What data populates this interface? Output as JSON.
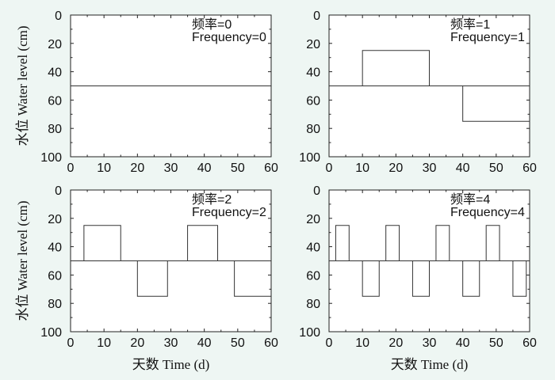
{
  "chart_data": [
    {
      "type": "line",
      "annotation_cn": "频率=0",
      "annotation_en": "Frequency=0",
      "ylabel": "水位  Water level (cm)",
      "xlabel": "",
      "xlim": [
        0,
        60
      ],
      "ylim": [
        0,
        100
      ],
      "y_inverted": true,
      "xticks": [
        "0",
        "10",
        "20",
        "30",
        "40",
        "50",
        "60"
      ],
      "yticks": [
        "0",
        "20",
        "40",
        "60",
        "80",
        "100"
      ],
      "baseline": 50,
      "series": [
        {
          "x": [
            0,
            60
          ],
          "y": [
            50,
            50
          ]
        }
      ]
    },
    {
      "type": "line",
      "annotation_cn": "频率=1",
      "annotation_en": "Frequency=1",
      "ylabel": "",
      "xlabel": "",
      "xlim": [
        0,
        60
      ],
      "ylim": [
        0,
        100
      ],
      "y_inverted": true,
      "xticks": [
        "0",
        "10",
        "20",
        "30",
        "40",
        "50",
        "60"
      ],
      "yticks": [
        "0",
        "20",
        "40",
        "60",
        "80",
        "100"
      ],
      "baseline": 50,
      "series": [
        {
          "x": [
            10,
            10,
            30,
            30
          ],
          "y": [
            50,
            25,
            25,
            50
          ]
        },
        {
          "x": [
            40,
            40,
            60
          ],
          "y": [
            50,
            75,
            75
          ]
        }
      ]
    },
    {
      "type": "line",
      "annotation_cn": "频率=2",
      "annotation_en": "Frequency=2",
      "ylabel": "水位  Water level (cm)",
      "xlabel": "天数  Time (d)",
      "xlim": [
        0,
        60
      ],
      "ylim": [
        0,
        100
      ],
      "y_inverted": true,
      "xticks": [
        "0",
        "10",
        "20",
        "30",
        "40",
        "50",
        "60"
      ],
      "yticks": [
        "0",
        "20",
        "40",
        "60",
        "80",
        "100"
      ],
      "baseline": 50,
      "series": [
        {
          "x": [
            4,
            4,
            15,
            15
          ],
          "y": [
            50,
            25,
            25,
            50
          ]
        },
        {
          "x": [
            20,
            20,
            29,
            29
          ],
          "y": [
            50,
            75,
            75,
            50
          ]
        },
        {
          "x": [
            35,
            35,
            44,
            44
          ],
          "y": [
            50,
            25,
            25,
            50
          ]
        },
        {
          "x": [
            49,
            49,
            60
          ],
          "y": [
            50,
            75,
            75
          ]
        }
      ]
    },
    {
      "type": "line",
      "annotation_cn": "频率=4",
      "annotation_en": "Frequency=4",
      "ylabel": "",
      "xlabel": "天数  Time (d)",
      "xlim": [
        0,
        60
      ],
      "ylim": [
        0,
        100
      ],
      "y_inverted": true,
      "xticks": [
        "0",
        "10",
        "20",
        "30",
        "40",
        "50",
        "60"
      ],
      "yticks": [
        "0",
        "20",
        "40",
        "60",
        "80",
        "100"
      ],
      "baseline": 50,
      "series": [
        {
          "x": [
            0,
            2,
            2,
            6,
            6,
            8,
            8,
            10,
            10,
            15,
            15,
            17,
            17,
            21,
            21,
            23,
            23,
            25,
            25,
            30,
            30,
            32,
            32,
            36,
            36,
            38,
            38,
            40,
            40,
            45,
            45,
            47,
            47,
            51,
            51,
            53,
            53,
            55,
            55,
            59,
            59,
            60
          ],
          "y": [
            50,
            50,
            25,
            25,
            50,
            50,
            50,
            50,
            75,
            75,
            50,
            50,
            25,
            25,
            50,
            50,
            50,
            50,
            75,
            75,
            50,
            50,
            25,
            25,
            50,
            50,
            50,
            50,
            75,
            75,
            50,
            50,
            25,
            25,
            50,
            50,
            50,
            50,
            75,
            75,
            50,
            50
          ]
        }
      ]
    }
  ]
}
